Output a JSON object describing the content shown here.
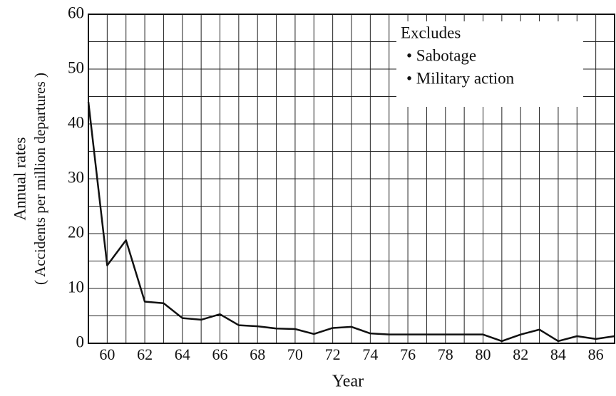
{
  "chart_data": {
    "type": "line",
    "x": [
      59,
      60,
      61,
      62,
      63,
      64,
      65,
      66,
      67,
      68,
      69,
      70,
      71,
      72,
      73,
      74,
      75,
      76,
      77,
      78,
      79,
      80,
      81,
      82,
      83,
      84,
      85,
      86,
      87
    ],
    "series": [
      {
        "name": "Annual rates",
        "color": "#111111",
        "values": [
          44,
          14.2,
          18.8,
          7.6,
          7.3,
          4.6,
          4.3,
          5.3,
          3.3,
          3.1,
          2.7,
          2.6,
          1.7,
          2.8,
          3.0,
          1.8,
          1.6,
          1.6,
          1.6,
          1.6,
          1.6,
          1.6,
          0.4,
          1.6,
          2.5,
          0.4,
          1.3,
          0.8,
          1.3
        ]
      }
    ],
    "xlim": [
      59,
      87
    ],
    "xticks": [
      60,
      62,
      64,
      66,
      68,
      70,
      72,
      74,
      76,
      78,
      80,
      82,
      84,
      86
    ],
    "ylim": [
      0,
      60
    ],
    "yticks": [
      0,
      10,
      20,
      30,
      40,
      50,
      60
    ],
    "yminorticks": [
      5,
      15,
      25,
      35,
      45,
      55
    ],
    "xlabel": "Year",
    "ylabel": [
      "Annual rates",
      "( Accidents per million departures )"
    ],
    "annotations": [
      "Excludes",
      "• Sabotage",
      "• Military action"
    ],
    "grid": true
  }
}
